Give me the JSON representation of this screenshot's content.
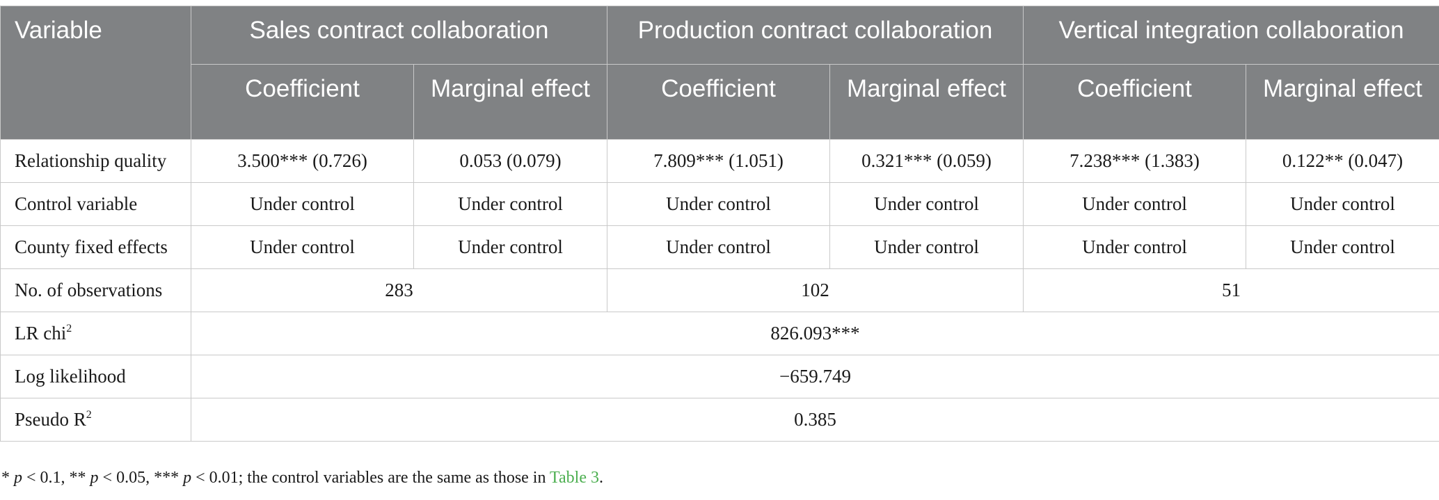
{
  "table": {
    "header": {
      "variable": "Variable",
      "groups": [
        "Sales contract collaboration",
        "Production contract collaboration",
        "Vertical integration collaboration"
      ],
      "sub": [
        "Coefficient",
        "Marginal effect"
      ]
    },
    "rows": [
      {
        "label": "Relationship quality",
        "cells": [
          "3.500*** (0.726)",
          "0.053 (0.079)",
          "7.809*** (1.051)",
          "0.321*** (0.059)",
          "7.238*** (1.383)",
          "0.122** (0.047)"
        ]
      },
      {
        "label": "Control variable",
        "cells": [
          "Under control",
          "Under control",
          "Under control",
          "Under control",
          "Under control",
          "Under control"
        ]
      },
      {
        "label": "County fixed effects",
        "cells": [
          "Under control",
          "Under control",
          "Under control",
          "Under control",
          "Under control",
          "Under control"
        ]
      }
    ],
    "observations": {
      "label": "No. of observations",
      "values": [
        "283",
        "102",
        "51"
      ]
    },
    "lr_chi": {
      "label": "LR chi",
      "sup": "2",
      "value": "826.093***"
    },
    "log_likelihood": {
      "label": "Log likelihood",
      "value": "−659.749"
    },
    "pseudo_r2": {
      "label": "Pseudo R",
      "sup": "2",
      "value": "0.385"
    }
  },
  "note": {
    "parts": [
      "* ",
      "p",
      " < 0.1, ** ",
      "p",
      " < 0.05, *** ",
      "p",
      " < 0.01; the control variables are the same as those in "
    ],
    "link": "Table 3",
    "end": ".",
    "link_color": "#4caf50"
  }
}
